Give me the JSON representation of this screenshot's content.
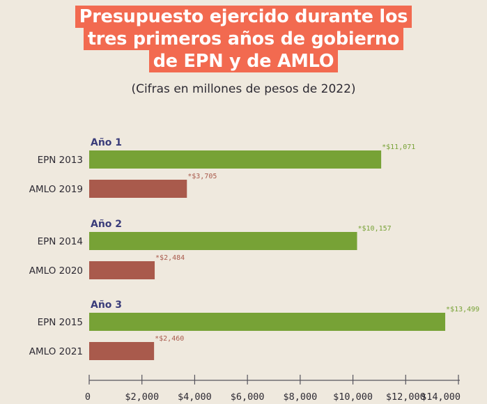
{
  "title_lines": [
    "Presupuesto ejercido durante los",
    "tres primeros años de gobierno",
    "de EPN y de AMLO"
  ],
  "subtitle": "(Cifras en millones de pesos de 2022)",
  "colors": {
    "epn": "#77a236",
    "amlo": "#a95a4c",
    "group_label": "#3a3c7a",
    "title_bg": "#f26a50",
    "background": "#efe9de"
  },
  "chart_data": {
    "type": "bar",
    "orientation": "horizontal",
    "xlim": [
      0,
      14000
    ],
    "x_ticks": [
      0,
      2000,
      4000,
      6000,
      8000,
      10000,
      12000,
      14000
    ],
    "x_tick_labels": [
      "0",
      "$2,000",
      "$4,000",
      "$6,000",
      "$8,000",
      "$10,000",
      "$12,000",
      "$14,000"
    ],
    "groups": [
      {
        "label": "Año 1",
        "bars": [
          {
            "category": "EPN 2013",
            "value": 11071,
            "value_label": "*$11,071",
            "series": "epn"
          },
          {
            "category": "AMLO 2019",
            "value": 3705,
            "value_label": "*$3,705",
            "series": "amlo"
          }
        ]
      },
      {
        "label": "Año 2",
        "bars": [
          {
            "category": "EPN 2014",
            "value": 10157,
            "value_label": "*$10,157",
            "series": "epn"
          },
          {
            "category": "AMLO 2020",
            "value": 2484,
            "value_label": "*$2,484",
            "series": "amlo"
          }
        ]
      },
      {
        "label": "Año 3",
        "bars": [
          {
            "category": "EPN 2015",
            "value": 13499,
            "value_label": "*$13,499",
            "series": "epn"
          },
          {
            "category": "AMLO 2021",
            "value": 2460,
            "value_label": "*$2,460",
            "series": "amlo"
          }
        ]
      }
    ]
  }
}
